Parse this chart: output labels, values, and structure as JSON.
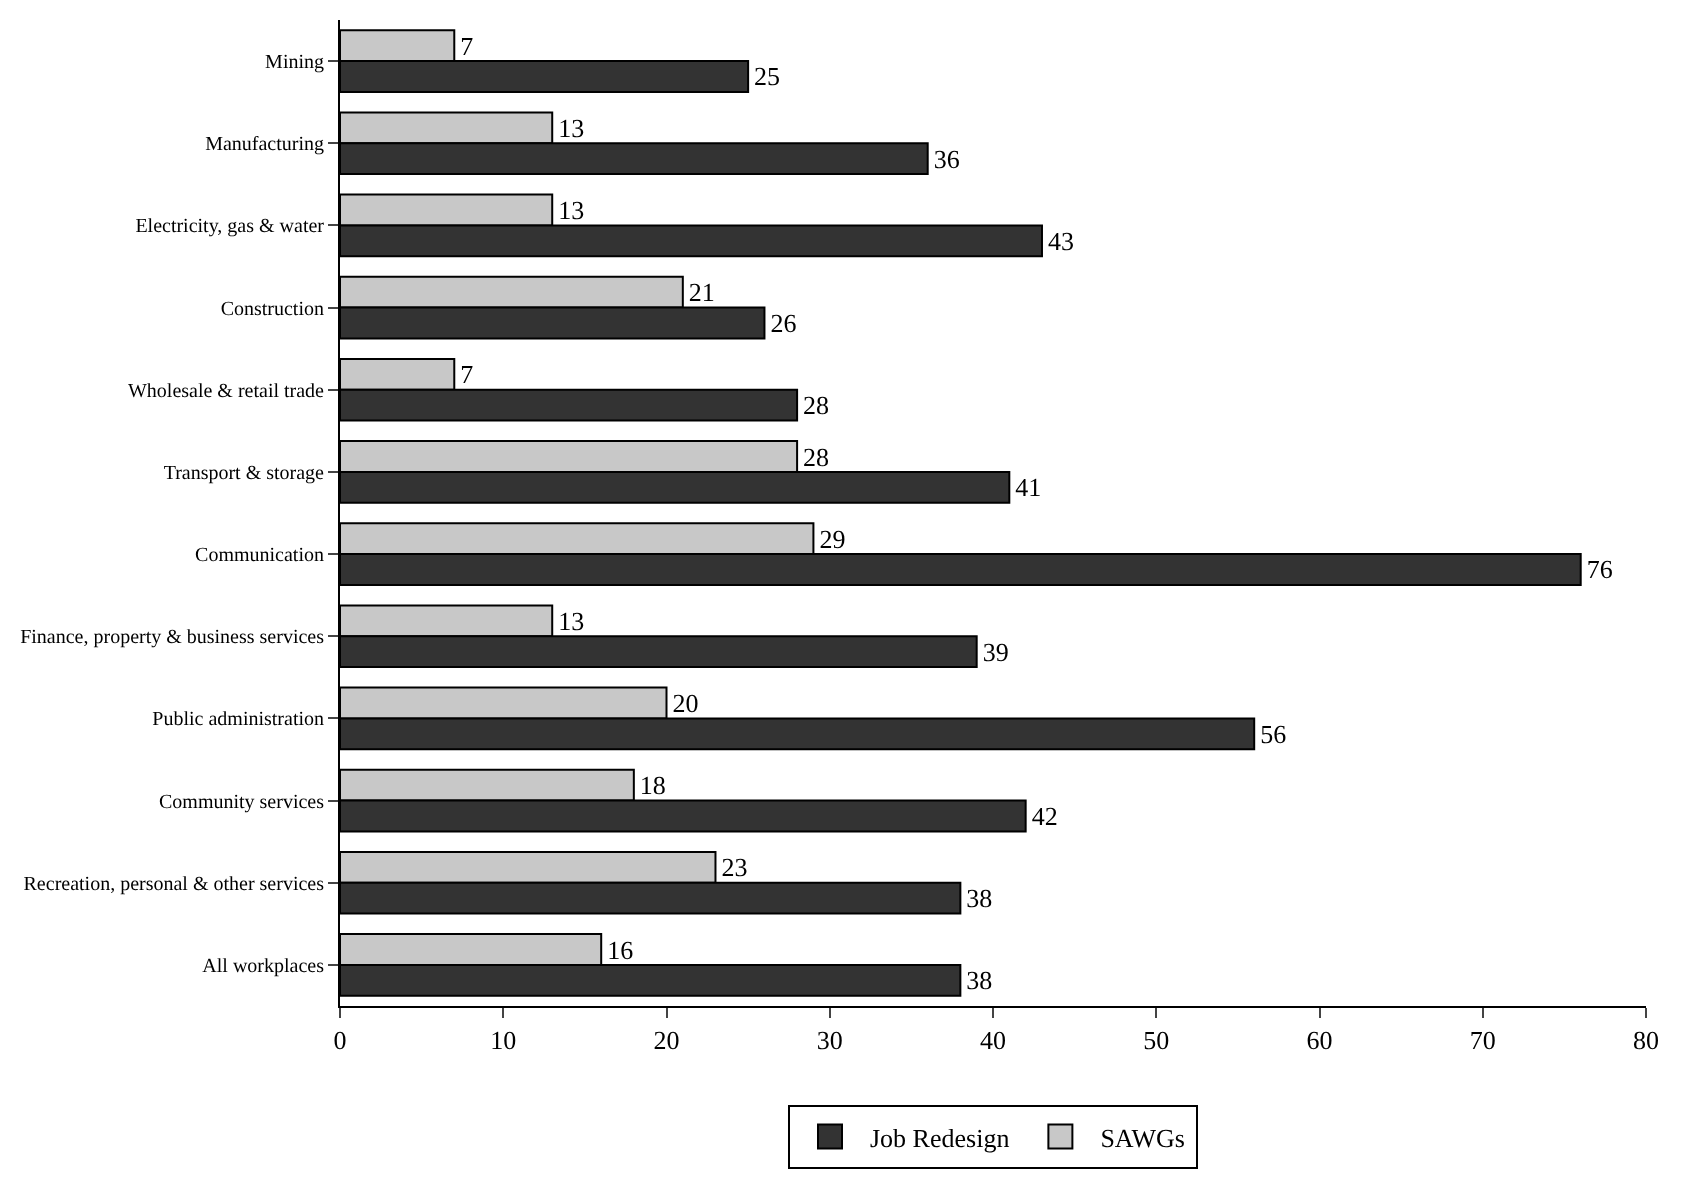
{
  "chart_data": {
    "type": "bar",
    "orientation": "horizontal",
    "categories": [
      "Mining",
      "Manufacturing",
      "Electricity, gas & water",
      "Construction",
      "Wholesale & retail trade",
      "Transport & storage",
      "Communication",
      "Finance, property & business services",
      "Public administration",
      "Community services",
      "Recreation, personal & other services",
      "All workplaces"
    ],
    "series": [
      {
        "name": "Job Redesign",
        "color": "#333333",
        "values": [
          25,
          36,
          43,
          26,
          28,
          41,
          76,
          39,
          56,
          42,
          38,
          38
        ]
      },
      {
        "name": "SAWGs",
        "color": "#c8c8c8",
        "values": [
          7,
          13,
          13,
          21,
          7,
          28,
          29,
          13,
          20,
          18,
          23,
          16
        ]
      }
    ],
    "xlim": [
      0,
      80
    ],
    "xticks": [
      0,
      10,
      20,
      30,
      40,
      50,
      60,
      70,
      80
    ],
    "legend": "bottom",
    "data_labels": true
  }
}
